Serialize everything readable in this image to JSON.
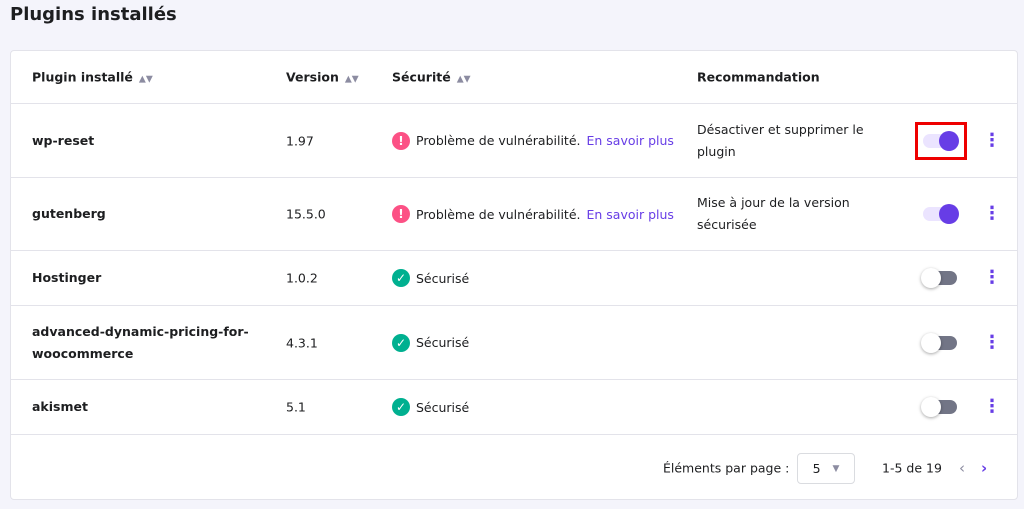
{
  "title": "Plugins installés",
  "headers": {
    "plugin": "Plugin installé",
    "version": "Version",
    "security": "Sécurité",
    "recommendation": "Recommandation"
  },
  "rows": [
    {
      "name": "wp-reset",
      "version": "1.97",
      "status": "warning",
      "security": "Problème de vulnérabilité.",
      "link": "En savoir plus",
      "recommendation": "Désactiver et supprimer le plugin",
      "enabled": true,
      "highlighted": true
    },
    {
      "name": "gutenberg",
      "version": "15.5.0",
      "status": "warning",
      "security": "Problème de vulnérabilité.",
      "link": "En savoir plus",
      "recommendation": "Mise à jour de la version sécurisée",
      "enabled": true
    },
    {
      "name": "Hostinger",
      "version": "1.0.2",
      "status": "ok",
      "security": "Sécurisé",
      "recommendation": "",
      "enabled": false
    },
    {
      "name": "advanced-dynamic-pricing-for-woocommerce",
      "version": "4.3.1",
      "status": "ok",
      "security": "Sécurisé",
      "recommendation": "",
      "enabled": false
    },
    {
      "name": "akismet",
      "version": "5.1",
      "status": "ok",
      "security": "Sécurisé",
      "recommendation": "",
      "enabled": false
    }
  ],
  "footer": {
    "per_page_label": "Éléments par page :",
    "per_page": "5",
    "range": "1-5 de 19"
  },
  "colors": {
    "accent": "#673de6",
    "warning": "#fc5185",
    "ok": "#00b090",
    "highlight": "#e00000"
  }
}
